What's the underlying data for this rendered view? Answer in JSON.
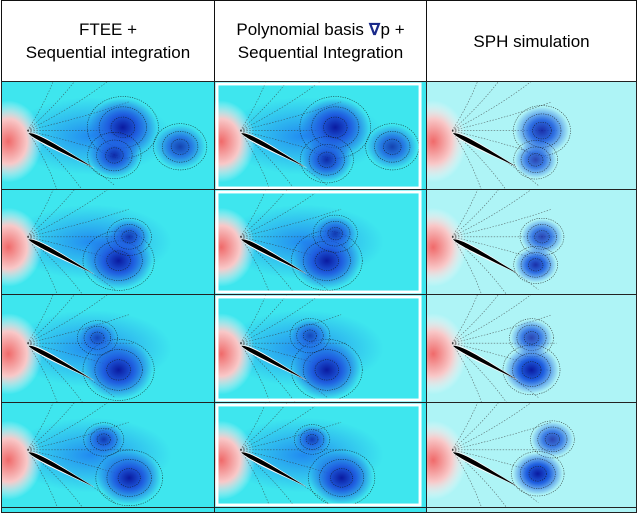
{
  "headers": [
    {
      "line1": "FTEE +",
      "line2": "Sequential integration"
    },
    {
      "line1_pre": "Polynomial basis ",
      "nabla": "∇",
      "line1_post": "p +",
      "line2": "Sequential Integration"
    },
    {
      "line1": "SPH simulation",
      "line2": ""
    }
  ],
  "columns": [
    "ftee",
    "polynomial",
    "sph"
  ],
  "rows": 4,
  "colors": {
    "field_base": "#3ee6ee",
    "field_low": "#1f5fe0",
    "field_vortex": "#0a1aa0",
    "field_high": "#f06a6a",
    "airfoil": "#000000",
    "border": "#111111"
  }
}
